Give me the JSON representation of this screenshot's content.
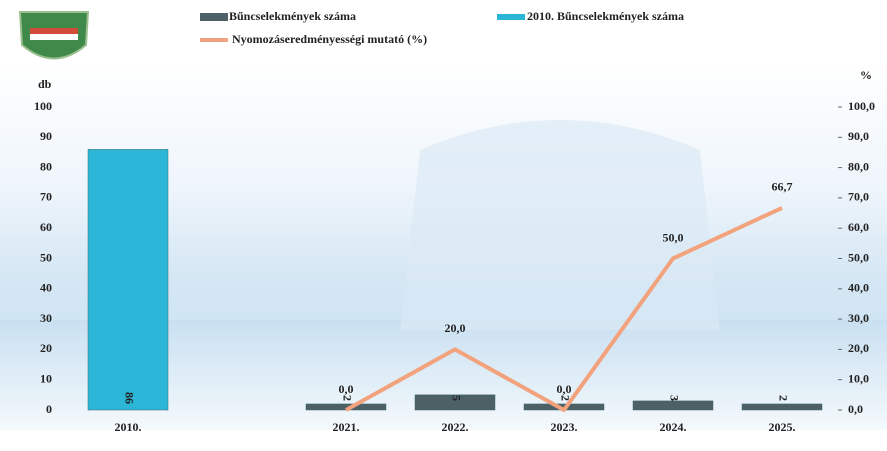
{
  "chart_data": {
    "type": "bar",
    "y_label": "db",
    "y2_label": "%",
    "categories": [
      "2010.",
      null,
      "2021.",
      "2022.",
      "2023.",
      "2024.",
      "2025."
    ],
    "series": [
      {
        "name": "Bűncselekmények száma",
        "color": "#4c6066",
        "values": [
          null,
          null,
          2,
          5,
          2,
          3,
          2
        ]
      },
      {
        "name": "2010. Bűncselekmények száma",
        "color": "#2bb6d8",
        "values": [
          86,
          null,
          null,
          null,
          null,
          null,
          null
        ]
      },
      {
        "name": "Nyomozáseredményességi mutató (%)",
        "type": "line",
        "axis": "y2",
        "color": "#f2a27c",
        "values": [
          null,
          null,
          0,
          20,
          0,
          50,
          66.7
        ],
        "value_labels": [
          null,
          null,
          "0,0",
          "20,0",
          "0,0",
          "50,0",
          "66,7"
        ]
      }
    ],
    "ylim": [
      0,
      100
    ],
    "yticks": [
      0,
      10,
      20,
      30,
      40,
      50,
      60,
      70,
      80,
      90,
      100
    ],
    "y2lim": [
      0,
      100
    ],
    "y2ticks": [
      {
        "value": 0,
        "label": "0,0"
      },
      {
        "value": 10,
        "label": "10,0"
      },
      {
        "value": 20,
        "label": "20,0"
      },
      {
        "value": 30,
        "label": "30,0"
      },
      {
        "value": 40,
        "label": "40,0"
      },
      {
        "value": 50,
        "label": "50,0"
      },
      {
        "value": 60,
        "label": "60,0"
      },
      {
        "value": 70,
        "label": "70,0"
      },
      {
        "value": 80,
        "label": "80,0"
      },
      {
        "value": 90,
        "label": "90,0"
      },
      {
        "value": 100,
        "label": "100,0"
      }
    ]
  }
}
